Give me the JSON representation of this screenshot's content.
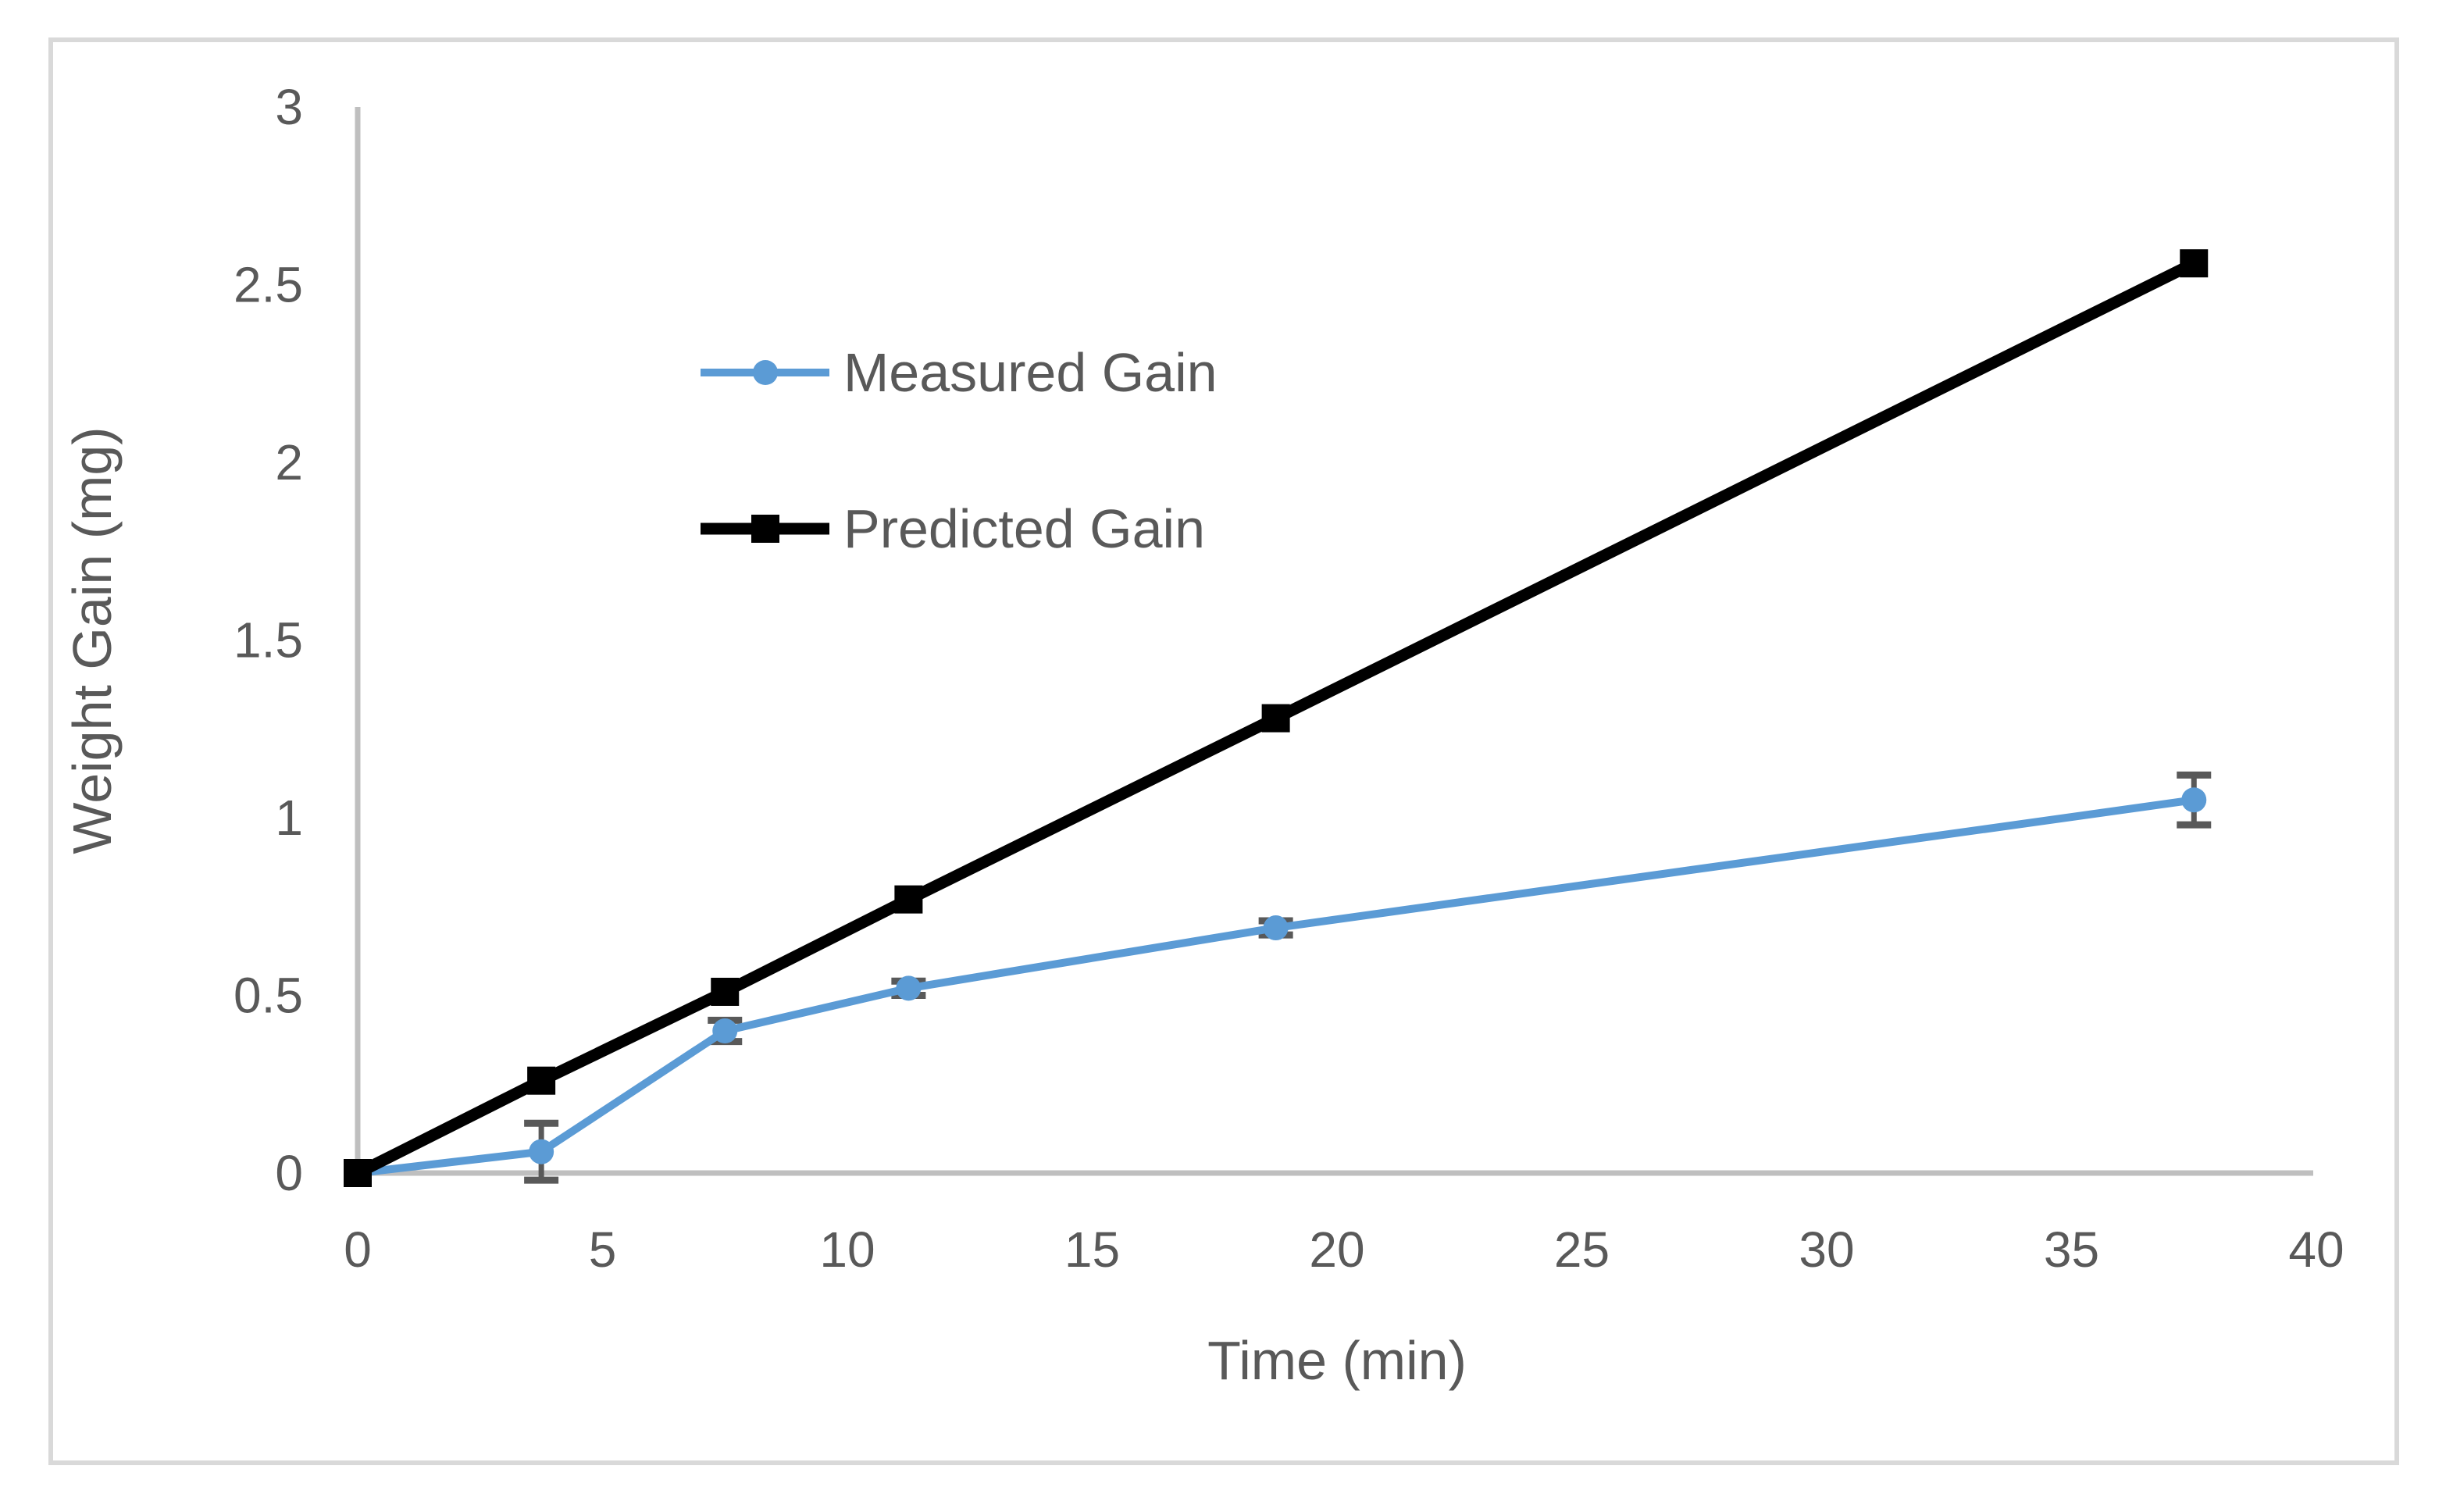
{
  "chart": {
    "colors": {
      "measured_series": "#5b9bd5",
      "predicted_series": "#000000",
      "axis_line": "#bfbfbf",
      "frame_border": "#d9d9d9",
      "text": "#595959",
      "error_bar": "#595959",
      "background": "#ffffff"
    }
  },
  "chart_data": {
    "type": "line",
    "title": "",
    "xlabel": "Time (min)",
    "ylabel": "Weight Gain (mg)",
    "xlim": [
      0,
      40
    ],
    "ylim": [
      0,
      3
    ],
    "grid": false,
    "legend_position": "inside-upper-left",
    "x_tick_values": [
      0,
      5,
      10,
      15,
      20,
      25,
      30,
      35,
      40
    ],
    "x_tick_labels": [
      "0",
      "5",
      "10",
      "15",
      "20",
      "25",
      "30",
      "35",
      "40"
    ],
    "y_tick_values": [
      0,
      0.5,
      1,
      1.5,
      2,
      2.5,
      3
    ],
    "y_tick_labels": [
      "0",
      "0.5",
      "1",
      "1.5",
      "2",
      "2.5",
      "3"
    ],
    "x": [
      0,
      3.75,
      7.5,
      11.25,
      18.75,
      37.5
    ],
    "series": [
      {
        "name": "Measured Gain",
        "marker": "circle",
        "color": "#5b9bd5",
        "values": [
          0,
          0.06,
          0.4,
          0.52,
          0.69,
          1.05
        ],
        "error": [
          0,
          0.08,
          0.03,
          0.02,
          0.02,
          0.07
        ]
      },
      {
        "name": "Predicted Gain",
        "marker": "square",
        "color": "#000000",
        "values": [
          0,
          0.26,
          0.51,
          0.77,
          1.28,
          2.56
        ],
        "error": [
          0,
          0,
          0,
          0,
          0,
          0
        ]
      }
    ]
  }
}
